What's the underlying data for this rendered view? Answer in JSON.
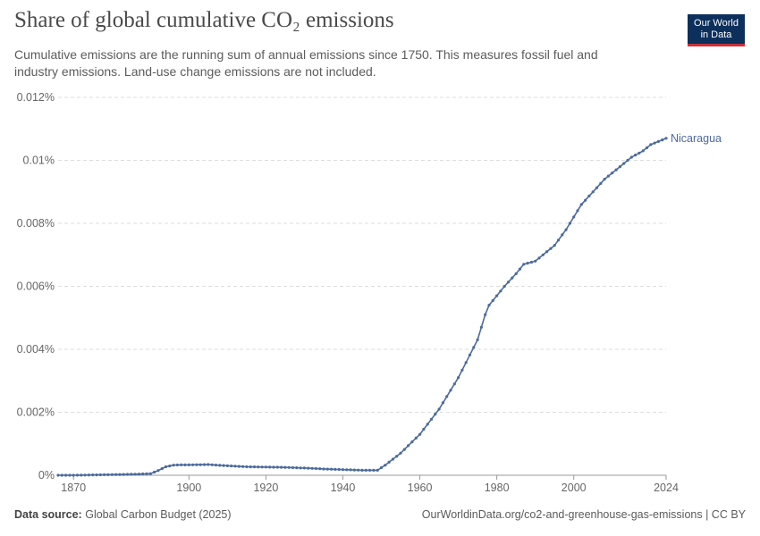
{
  "header": {
    "title": "Share of global cumulative CO₂ emissions",
    "subtitle": "Cumulative emissions are the running sum of annual emissions since 1750. This measures fossil fuel and industry emissions. Land-use change emissions are not included.",
    "logo_line1": "Our World",
    "logo_line2": "in Data"
  },
  "footer": {
    "source_label": "Data source:",
    "source_value": "Global Carbon Budget (2025)",
    "attribution": "OurWorldinData.org/co2-and-greenhouse-gas-emissions | CC BY"
  },
  "colors": {
    "series": "#4c6a9c",
    "logo_bg": "#0c2f5c",
    "logo_accent": "#c8313a"
  },
  "chart_data": {
    "type": "line",
    "title": "Share of global cumulative CO₂ emissions",
    "xlim": [
      1866,
      2024
    ],
    "ylim": [
      0,
      0.012
    ],
    "x_ticks": [
      1870,
      1900,
      1920,
      1940,
      1960,
      1980,
      2000,
      2024
    ],
    "y_ticks": [
      {
        "value": 0,
        "label": "0%"
      },
      {
        "value": 0.002,
        "label": "0.002%"
      },
      {
        "value": 0.004,
        "label": "0.004%"
      },
      {
        "value": 0.006,
        "label": "0.006%"
      },
      {
        "value": 0.008,
        "label": "0.008%"
      },
      {
        "value": 0.01,
        "label": "0.01%"
      },
      {
        "value": 0.012,
        "label": "0.012%"
      }
    ],
    "grid": "horizontal dashed",
    "series": [
      {
        "name": "Nicaragua",
        "points": [
          [
            1866,
            0
          ],
          [
            1870,
            0
          ],
          [
            1875,
            1e-05
          ],
          [
            1880,
            2e-05
          ],
          [
            1885,
            3e-05
          ],
          [
            1890,
            5e-05
          ],
          [
            1892,
            0.00015
          ],
          [
            1894,
            0.00027
          ],
          [
            1896,
            0.00032
          ],
          [
            1898,
            0.00033
          ],
          [
            1900,
            0.00033
          ],
          [
            1905,
            0.00034
          ],
          [
            1910,
            0.0003
          ],
          [
            1915,
            0.00027
          ],
          [
            1920,
            0.00026
          ],
          [
            1925,
            0.00025
          ],
          [
            1930,
            0.00023
          ],
          [
            1935,
            0.0002
          ],
          [
            1940,
            0.00018
          ],
          [
            1945,
            0.00016
          ],
          [
            1949,
            0.00016
          ],
          [
            1951,
            0.00032
          ],
          [
            1955,
            0.0007
          ],
          [
            1960,
            0.0013
          ],
          [
            1965,
            0.0021
          ],
          [
            1970,
            0.0031
          ],
          [
            1975,
            0.0043
          ],
          [
            1977,
            0.0051
          ],
          [
            1978,
            0.0054
          ],
          [
            1980,
            0.0057
          ],
          [
            1982,
            0.006
          ],
          [
            1985,
            0.0064
          ],
          [
            1987,
            0.0067
          ],
          [
            1990,
            0.0068
          ],
          [
            1993,
            0.0071
          ],
          [
            1995,
            0.0073
          ],
          [
            1998,
            0.0078
          ],
          [
            2000,
            0.0082
          ],
          [
            2002,
            0.0086
          ],
          [
            2005,
            0.009
          ],
          [
            2008,
            0.0094
          ],
          [
            2010,
            0.0096
          ],
          [
            2013,
            0.0099
          ],
          [
            2015,
            0.0101
          ],
          [
            2018,
            0.0103
          ],
          [
            2020,
            0.0105
          ],
          [
            2022,
            0.0106
          ],
          [
            2024,
            0.0107
          ]
        ]
      }
    ]
  }
}
